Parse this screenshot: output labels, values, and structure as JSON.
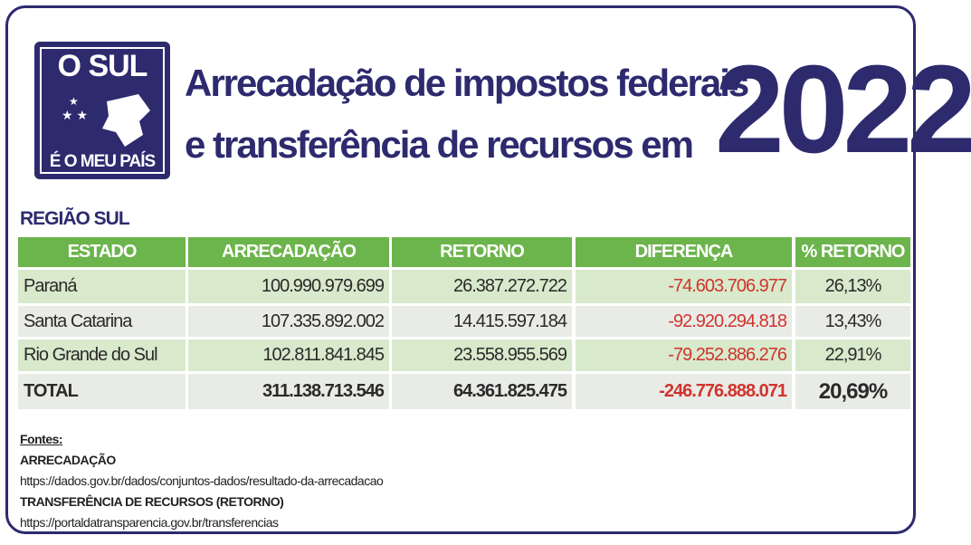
{
  "header": {
    "logo_top": "O SUL",
    "logo_bottom": "É O MEU PAÍS",
    "title_line1": "Arrecadação de impostos federais",
    "title_line2": "e transferência de recursos em",
    "year": "2022"
  },
  "table": {
    "region": "REGIÃO SUL",
    "columns": [
      "ESTADO",
      "ARRECADAÇÃO",
      "RETORNO",
      "DIFERENÇA",
      "% RETORNO"
    ],
    "rows": [
      [
        "Paraná",
        "100.990.979.699",
        "26.387.272.722",
        "-74.603.706.977",
        "26,13%"
      ],
      [
        "Santa Catarina",
        "107.335.892.002",
        "14.415.597.184",
        "-92.920.294.818",
        "13,43%"
      ],
      [
        "Rio Grande do Sul",
        "102.811.841.845",
        "23.558.955.569",
        "-79.252.886.276",
        "22,91%"
      ]
    ],
    "total": [
      "TOTAL",
      "311.138.713.546",
      "64.361.825.475",
      "-246.776.888.071",
      "20,69%"
    ]
  },
  "sources": {
    "label": "Fontes:",
    "items": [
      {
        "title": "ARRECADAÇÃO",
        "url": "https://dados.gov.br/dados/conjuntos-dados/resultado-da-arrecadacao"
      },
      {
        "title": "TRANSFERÊNCIA DE RECURSOS (RETORNO)",
        "url": "https://portaldatransparencia.gov.br/transferencias"
      }
    ]
  }
}
